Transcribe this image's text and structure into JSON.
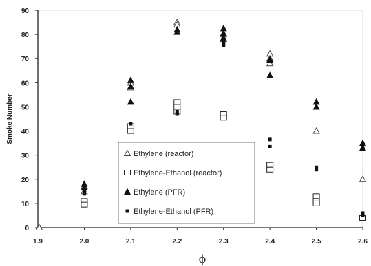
{
  "chart_data": {
    "type": "scatter",
    "title": "",
    "xlabel": "ϕ",
    "ylabel": "Smoke Number",
    "xlim": [
      1.9,
      2.6
    ],
    "ylim": [
      0,
      90
    ],
    "x_ticks": [
      "1.9",
      "2.0",
      "2.1",
      "2.2",
      "2.3",
      "2.4",
      "2.5",
      "2.6"
    ],
    "y_ticks": [
      "0",
      "10",
      "20",
      "30",
      "40",
      "50",
      "60",
      "70",
      "80",
      "90"
    ],
    "grid": false,
    "legend_position": "center-bottom",
    "series": [
      {
        "name": "Ethylene (reactor)",
        "marker": "open-triangle",
        "points": [
          {
            "x": 1.9,
            "y": 0
          },
          {
            "x": 2.0,
            "y": 17
          },
          {
            "x": 2.0,
            "y": 15
          },
          {
            "x": 2.1,
            "y": 58
          },
          {
            "x": 2.1,
            "y": 60
          },
          {
            "x": 2.2,
            "y": 85
          },
          {
            "x": 2.2,
            "y": 84
          },
          {
            "x": 2.3,
            "y": 80
          },
          {
            "x": 2.3,
            "y": 78
          },
          {
            "x": 2.4,
            "y": 72
          },
          {
            "x": 2.4,
            "y": 70
          },
          {
            "x": 2.4,
            "y": 68
          },
          {
            "x": 2.5,
            "y": 40
          },
          {
            "x": 2.6,
            "y": 20
          }
        ]
      },
      {
        "name": "Ethylene-Ethanol (reactor)",
        "marker": "open-square",
        "points": [
          {
            "x": 2.0,
            "y": 11
          },
          {
            "x": 2.0,
            "y": 9.5
          },
          {
            "x": 2.1,
            "y": 42
          },
          {
            "x": 2.1,
            "y": 40
          },
          {
            "x": 2.2,
            "y": 52
          },
          {
            "x": 2.2,
            "y": 50
          },
          {
            "x": 2.2,
            "y": 48
          },
          {
            "x": 2.3,
            "y": 47
          },
          {
            "x": 2.3,
            "y": 45.5
          },
          {
            "x": 2.4,
            "y": 26
          },
          {
            "x": 2.4,
            "y": 24
          },
          {
            "x": 2.5,
            "y": 13
          },
          {
            "x": 2.5,
            "y": 11
          },
          {
            "x": 2.5,
            "y": 10
          },
          {
            "x": 2.6,
            "y": 4
          }
        ]
      },
      {
        "name": "Ethylene (PFR)",
        "marker": "filled-triangle",
        "points": [
          {
            "x": 2.0,
            "y": 18
          },
          {
            "x": 2.0,
            "y": 16.5
          },
          {
            "x": 2.1,
            "y": 61
          },
          {
            "x": 2.1,
            "y": 58.5
          },
          {
            "x": 2.1,
            "y": 52
          },
          {
            "x": 2.2,
            "y": 82
          },
          {
            "x": 2.2,
            "y": 81
          },
          {
            "x": 2.3,
            "y": 82.5
          },
          {
            "x": 2.3,
            "y": 80.5
          },
          {
            "x": 2.3,
            "y": 78.5
          },
          {
            "x": 2.4,
            "y": 69.5
          },
          {
            "x": 2.4,
            "y": 63
          },
          {
            "x": 2.5,
            "y": 52
          },
          {
            "x": 2.5,
            "y": 50
          },
          {
            "x": 2.6,
            "y": 35
          },
          {
            "x": 2.6,
            "y": 33
          }
        ]
      },
      {
        "name": "Ethylene-Ethanol (PFR)",
        "marker": "filled-square",
        "points": [
          {
            "x": 2.0,
            "y": 15
          },
          {
            "x": 2.0,
            "y": 14
          },
          {
            "x": 2.1,
            "y": 43
          },
          {
            "x": 2.2,
            "y": 48
          },
          {
            "x": 2.2,
            "y": 47
          },
          {
            "x": 2.3,
            "y": 77
          },
          {
            "x": 2.3,
            "y": 76
          },
          {
            "x": 2.3,
            "y": 75.5
          },
          {
            "x": 2.4,
            "y": 36.5
          },
          {
            "x": 2.4,
            "y": 33.5
          },
          {
            "x": 2.5,
            "y": 25
          },
          {
            "x": 2.5,
            "y": 24
          },
          {
            "x": 2.6,
            "y": 6
          },
          {
            "x": 2.6,
            "y": 5
          }
        ]
      }
    ]
  }
}
